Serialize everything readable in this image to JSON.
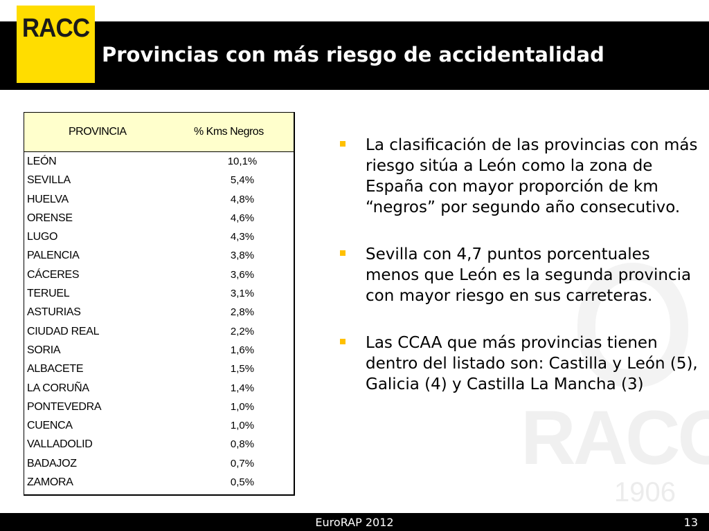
{
  "header": {
    "logo_text": "RACC",
    "title": "Provincias con más riesgo de accidentalidad",
    "brand_color": "#FFDD00"
  },
  "watermark": {
    "text": "RACC",
    "year": "1906"
  },
  "table": {
    "headers": [
      "PROVINCIA",
      "%  Kms Negros"
    ],
    "rows": [
      {
        "name": "LEÓN",
        "value": "10,1%"
      },
      {
        "name": "SEVILLA",
        "value": "5,4%"
      },
      {
        "name": "HUELVA",
        "value": "4,8%"
      },
      {
        "name": "ORENSE",
        "value": "4,6%"
      },
      {
        "name": "LUGO",
        "value": "4,3%"
      },
      {
        "name": "PALENCIA",
        "value": "3,8%"
      },
      {
        "name": "CÁCERES",
        "value": "3,6%"
      },
      {
        "name": "TERUEL",
        "value": "3,1%"
      },
      {
        "name": "ASTURIAS",
        "value": "2,8%"
      },
      {
        "name": "CIUDAD REAL",
        "value": "2,2%"
      },
      {
        "name": "SORIA",
        "value": "1,6%"
      },
      {
        "name": "ALBACETE",
        "value": "1,5%"
      },
      {
        "name": "LA CORUÑA",
        "value": "1,4%"
      },
      {
        "name": "PONTEVEDRA",
        "value": "1,0%"
      },
      {
        "name": "CUENCA",
        "value": "1,0%"
      },
      {
        "name": "VALLADOLID",
        "value": "0,8%"
      },
      {
        "name": "BADAJOZ",
        "value": "0,7%"
      },
      {
        "name": "ZAMORA",
        "value": "0,5%"
      }
    ]
  },
  "bullets": [
    "La clasificación de las provincias con más riesgo sitúa a León como la zona de España con mayor proporción de km “negros” por segundo año consecutivo.",
    "Sevilla con 4,7 puntos porcentuales menos que León es la segunda provincia con mayor riesgo en sus carreteras.",
    "Las CCAA que más provincias tienen dentro del listado son: Castilla y León (5), Galicia (4) y Castilla La Mancha (3)"
  ],
  "footer": {
    "center": "EuroRAP 2012",
    "page": "13"
  }
}
